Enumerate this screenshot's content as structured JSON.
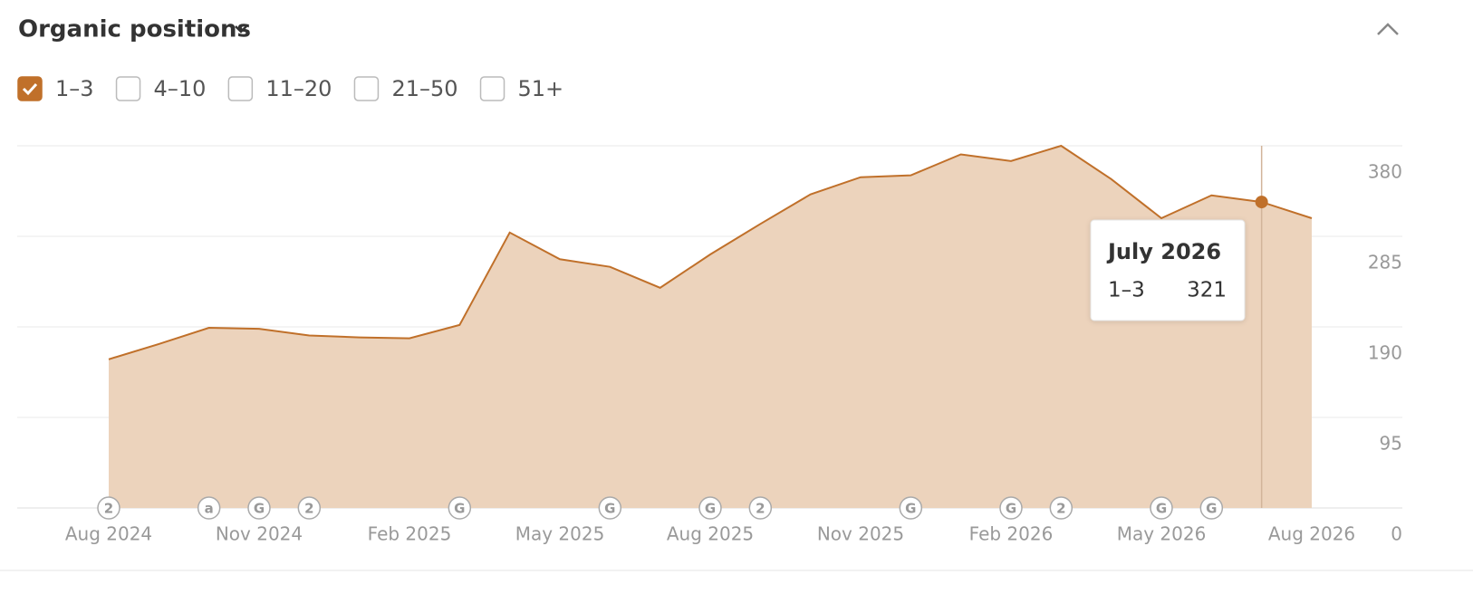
{
  "chart_data": {
    "type": "area",
    "title": "Organic positions",
    "x": [
      "Aug 2024",
      "Sep 2024",
      "Oct 2024",
      "Nov 2024",
      "Dec 2024",
      "Jan 2025",
      "Feb 2025",
      "Mar 2025",
      "Apr 2025",
      "May 2025",
      "Jun 2025",
      "Jul 2025",
      "Aug 2025",
      "Sep 2025",
      "Oct 2025",
      "Nov 2025",
      "Dec 2025",
      "Jan 2026",
      "Feb 2026",
      "Mar 2026",
      "Apr 2026",
      "May 2026",
      "Jun 2026",
      "Jul 2026",
      "Aug 2026"
    ],
    "xticks": [
      "Aug 2024",
      "Nov 2024",
      "Feb 2025",
      "May 2025",
      "Aug 2025",
      "Nov 2025",
      "Feb 2026",
      "May 2026",
      "Aug 2026"
    ],
    "series": [
      {
        "name": "1–3",
        "color": "#c0702a",
        "fill": "#ecd3bc",
        "values": [
          156,
          172,
          189,
          188,
          181,
          179,
          178,
          192,
          289,
          261,
          253,
          231,
          266,
          298,
          329,
          347,
          349,
          371,
          364,
          380,
          345,
          304,
          328,
          321,
          304
        ]
      }
    ],
    "inactive_legend": [
      "4–10",
      "11–20",
      "21–50",
      "51+"
    ],
    "ylim": [
      0,
      380
    ],
    "yticks": [
      0,
      95,
      190,
      285,
      380
    ],
    "grid": true,
    "annotations": [
      {
        "x": "Aug 2024",
        "label": "2"
      },
      {
        "x": "Oct 2024",
        "label": "a"
      },
      {
        "x": "Nov 2024",
        "label": "G"
      },
      {
        "x": "Dec 2024",
        "label": "2"
      },
      {
        "x": "Mar 2025",
        "label": "G"
      },
      {
        "x": "Jun 2025",
        "label": "G"
      },
      {
        "x": "Aug 2025",
        "label": "G"
      },
      {
        "x": "Sep 2025",
        "label": "2"
      },
      {
        "x": "Dec 2025",
        "label": "G"
      },
      {
        "x": "Feb 2026",
        "label": "G"
      },
      {
        "x": "Mar 2026",
        "label": "2"
      },
      {
        "x": "May 2026",
        "label": "G"
      },
      {
        "x": "Jun 2026",
        "label": "G"
      }
    ],
    "tooltip": {
      "title": "July 2026",
      "index": 23
    }
  }
}
